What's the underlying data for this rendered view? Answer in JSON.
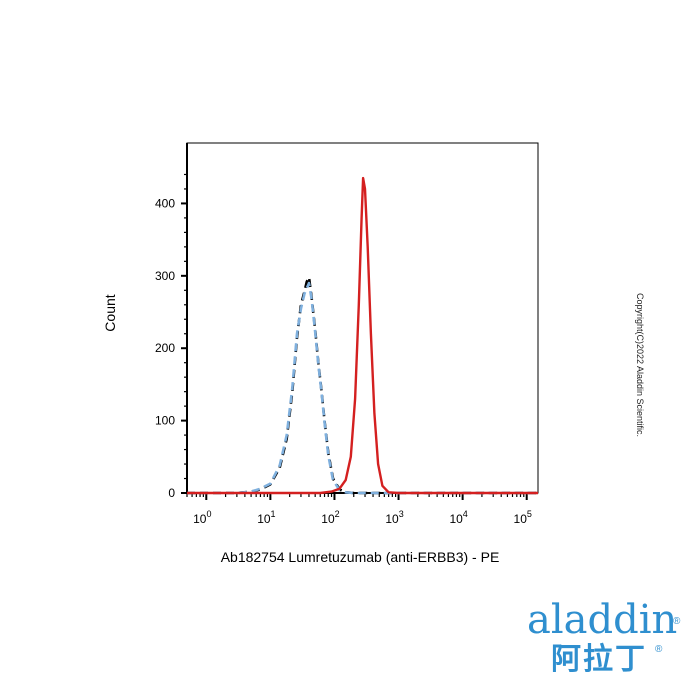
{
  "chart_data": {
    "type": "line",
    "xlabel": "Ab182754 Lumretuzumab (anti-ERBB3) - PE",
    "ylabel": "Count",
    "x_scale": "log",
    "xlim": [
      0.5,
      150000
    ],
    "ylim": [
      0,
      460
    ],
    "x_ticks": [
      {
        "value": 1,
        "base": "10",
        "exp": "0"
      },
      {
        "value": 10,
        "base": "10",
        "exp": "1"
      },
      {
        "value": 100,
        "base": "10",
        "exp": "2"
      },
      {
        "value": 1000,
        "base": "10",
        "exp": "3"
      },
      {
        "value": 10000,
        "base": "10",
        "exp": "4"
      },
      {
        "value": 100000,
        "base": "10",
        "exp": "5"
      }
    ],
    "y_ticks": [
      0,
      100,
      200,
      300,
      400
    ],
    "grid": false,
    "series": [
      {
        "style": "dashed",
        "color": "#000000",
        "x": [
          0.5,
          3,
          5,
          7,
          10,
          14,
          18,
          22,
          26,
          30,
          34,
          37,
          40,
          44,
          50,
          56,
          63,
          70,
          80,
          95,
          120,
          150,
          200,
          300,
          1000,
          10000,
          150000
        ],
        "y": [
          0,
          0,
          2,
          5,
          12,
          35,
          75,
          140,
          215,
          260,
          278,
          292,
          298,
          270,
          225,
          180,
          140,
          100,
          55,
          20,
          5,
          1,
          0,
          0,
          0,
          0,
          0
        ]
      },
      {
        "style": "dashed",
        "color": "#7fb0de",
        "x": [
          0.5,
          3,
          5,
          7,
          10,
          14,
          18,
          22,
          26,
          30,
          34,
          37,
          40,
          44,
          50,
          56,
          63,
          70,
          80,
          95,
          120,
          150,
          200,
          300,
          1000,
          10000,
          150000
        ],
        "y": [
          0,
          0,
          2,
          6,
          13,
          38,
          80,
          145,
          220,
          255,
          275,
          283,
          290,
          268,
          222,
          178,
          138,
          98,
          52,
          18,
          4,
          1,
          0,
          0,
          0,
          0,
          0
        ]
      },
      {
        "style": "solid",
        "color": "#d42020",
        "x": [
          0.5,
          10,
          60,
          90,
          120,
          150,
          180,
          210,
          240,
          265,
          280,
          300,
          330,
          370,
          420,
          480,
          560,
          700,
          1000,
          10000,
          150000
        ],
        "y": [
          0,
          0,
          0,
          2,
          6,
          18,
          50,
          130,
          260,
          380,
          435,
          420,
          340,
          220,
          110,
          40,
          10,
          1,
          0,
          0,
          0
        ]
      }
    ]
  },
  "copyright": "Copyright(C)2022 Aladdin Scientific.",
  "brand": {
    "latin": "aladdin",
    "registered": "®",
    "chinese": "阿拉丁"
  }
}
